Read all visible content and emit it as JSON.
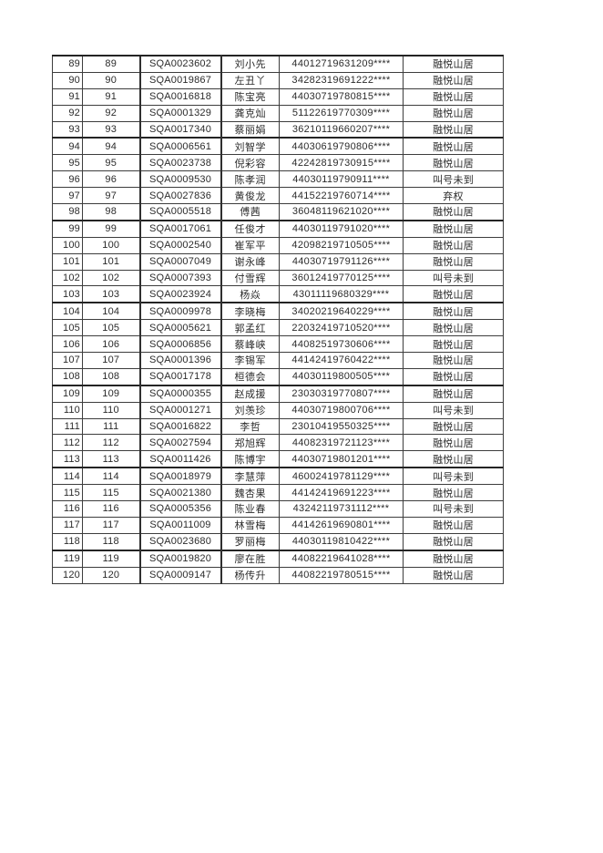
{
  "document": {
    "background_color": "#ffffff",
    "text_color": "#2b2b2b",
    "border_color": "#3d3d3d",
    "group_size": 5
  },
  "table": {
    "columns": [
      "row-number",
      "sequence-number",
      "applicant-code",
      "applicant-name",
      "id-number-masked",
      "result"
    ],
    "rows": [
      {
        "no": "89",
        "seq": "89",
        "code": "SQA0023602",
        "name": "刘小先",
        "id": "44012719631209****",
        "result": "融悦山居"
      },
      {
        "no": "90",
        "seq": "90",
        "code": "SQA0019867",
        "name": "左丑丫",
        "id": "34282319691222****",
        "result": "融悦山居"
      },
      {
        "no": "91",
        "seq": "91",
        "code": "SQA0016818",
        "name": "陈宝亮",
        "id": "44030719780815****",
        "result": "融悦山居"
      },
      {
        "no": "92",
        "seq": "92",
        "code": "SQA0001329",
        "name": "龚克灿",
        "id": "51122619770309****",
        "result": "融悦山居"
      },
      {
        "no": "93",
        "seq": "93",
        "code": "SQA0017340",
        "name": "蔡丽娟",
        "id": "36210119660207****",
        "result": "融悦山居"
      },
      {
        "no": "94",
        "seq": "94",
        "code": "SQA0006561",
        "name": "刘智学",
        "id": "44030619790806****",
        "result": "融悦山居"
      },
      {
        "no": "95",
        "seq": "95",
        "code": "SQA0023738",
        "name": "倪彩容",
        "id": "42242819730915****",
        "result": "融悦山居"
      },
      {
        "no": "96",
        "seq": "96",
        "code": "SQA0009530",
        "name": "陈孝润",
        "id": "44030119790911****",
        "result": "叫号未到"
      },
      {
        "no": "97",
        "seq": "97",
        "code": "SQA0027836",
        "name": "黄俊龙",
        "id": "44152219760714****",
        "result": "弃权"
      },
      {
        "no": "98",
        "seq": "98",
        "code": "SQA0005518",
        "name": "傅茜",
        "id": "36048119621020****",
        "result": "融悦山居"
      },
      {
        "no": "99",
        "seq": "99",
        "code": "SQA0017061",
        "name": "任俊才",
        "id": "44030119791020****",
        "result": "融悦山居"
      },
      {
        "no": "100",
        "seq": "100",
        "code": "SQA0002540",
        "name": "崔军平",
        "id": "42098219710505****",
        "result": "融悦山居"
      },
      {
        "no": "101",
        "seq": "101",
        "code": "SQA0007049",
        "name": "谢永峰",
        "id": "44030719791126****",
        "result": "融悦山居"
      },
      {
        "no": "102",
        "seq": "102",
        "code": "SQA0007393",
        "name": "付雪辉",
        "id": "36012419770125****",
        "result": "叫号未到"
      },
      {
        "no": "103",
        "seq": "103",
        "code": "SQA0023924",
        "name": "杨焱",
        "id": "43011119680329****",
        "result": "融悦山居"
      },
      {
        "no": "104",
        "seq": "104",
        "code": "SQA0009978",
        "name": "李晓梅",
        "id": "34020219640229****",
        "result": "融悦山居"
      },
      {
        "no": "105",
        "seq": "105",
        "code": "SQA0005621",
        "name": "郭孟红",
        "id": "22032419710520****",
        "result": "融悦山居"
      },
      {
        "no": "106",
        "seq": "106",
        "code": "SQA0006856",
        "name": "蔡峰峡",
        "id": "44082519730606****",
        "result": "融悦山居"
      },
      {
        "no": "107",
        "seq": "107",
        "code": "SQA0001396",
        "name": "李锡军",
        "id": "44142419760422****",
        "result": "融悦山居"
      },
      {
        "no": "108",
        "seq": "108",
        "code": "SQA0017178",
        "name": "桓德会",
        "id": "44030119800505****",
        "result": "融悦山居"
      },
      {
        "no": "109",
        "seq": "109",
        "code": "SQA0000355",
        "name": "赵成援",
        "id": "23030319770807****",
        "result": "融悦山居"
      },
      {
        "no": "110",
        "seq": "110",
        "code": "SQA0001271",
        "name": "刘羡珍",
        "id": "44030719800706****",
        "result": "叫号未到"
      },
      {
        "no": "111",
        "seq": "111",
        "code": "SQA0016822",
        "name": "李哲",
        "id": "23010419550325****",
        "result": "融悦山居"
      },
      {
        "no": "112",
        "seq": "112",
        "code": "SQA0027594",
        "name": "郑旭辉",
        "id": "44082319721123****",
        "result": "融悦山居"
      },
      {
        "no": "113",
        "seq": "113",
        "code": "SQA0011426",
        "name": "陈博宇",
        "id": "44030719801201****",
        "result": "融悦山居"
      },
      {
        "no": "114",
        "seq": "114",
        "code": "SQA0018979",
        "name": "李慧萍",
        "id": "46002419781129****",
        "result": "叫号未到"
      },
      {
        "no": "115",
        "seq": "115",
        "code": "SQA0021380",
        "name": "魏杏果",
        "id": "44142419691223****",
        "result": "融悦山居"
      },
      {
        "no": "116",
        "seq": "116",
        "code": "SQA0005356",
        "name": "陈业春",
        "id": "43242119731112****",
        "result": "叫号未到"
      },
      {
        "no": "117",
        "seq": "117",
        "code": "SQA0011009",
        "name": "林雪梅",
        "id": "44142619690801****",
        "result": "融悦山居"
      },
      {
        "no": "118",
        "seq": "118",
        "code": "SQA0023680",
        "name": "罗丽梅",
        "id": "44030119810422****",
        "result": "融悦山居"
      },
      {
        "no": "119",
        "seq": "119",
        "code": "SQA0019820",
        "name": "廖在胜",
        "id": "44082219641028****",
        "result": "融悦山居"
      },
      {
        "no": "120",
        "seq": "120",
        "code": "SQA0009147",
        "name": "杨传升",
        "id": "44082219780515****",
        "result": "融悦山居"
      }
    ]
  }
}
